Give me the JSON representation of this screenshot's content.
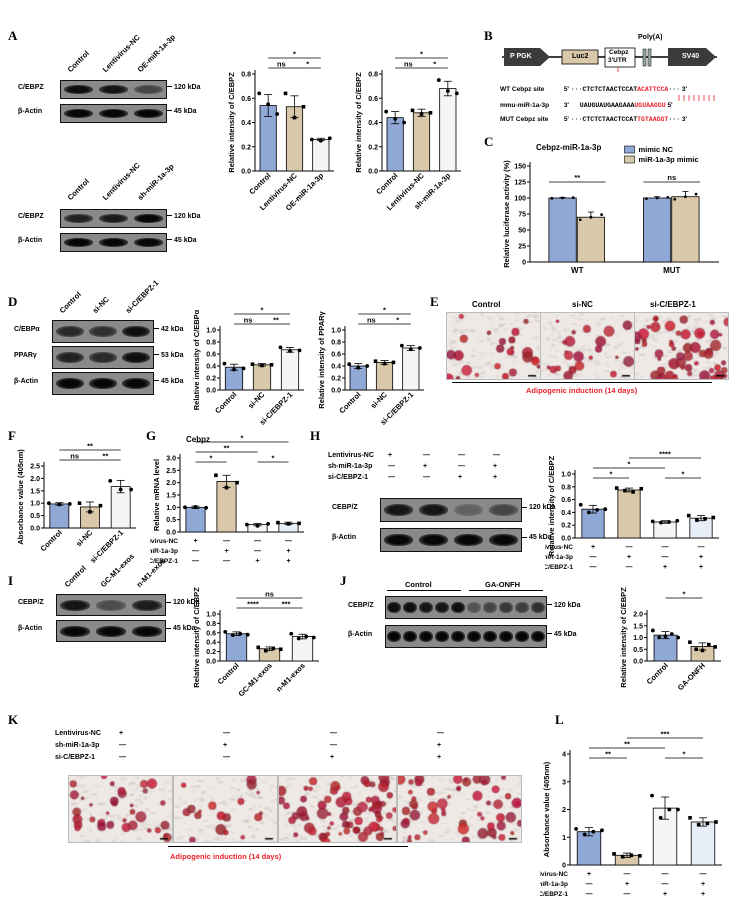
{
  "panels": {
    "A": {
      "letter": "A",
      "blot1": {
        "lanes": [
          "Control",
          "Lentivirus-NC",
          "OE-miR-1a-3p"
        ],
        "rows": [
          {
            "label": "C/EBPZ",
            "kda": "120 kDa",
            "intensity": [
              0.9,
              0.85,
              0.5
            ]
          },
          {
            "label": "β-Actin",
            "kda": "45 kDa",
            "intensity": [
              0.95,
              0.95,
              0.95
            ]
          }
        ]
      },
      "blot2": {
        "lanes": [
          "Control",
          "Lentivirus-NC",
          "sh-miR-1a-3p"
        ],
        "rows": [
          {
            "label": "C/EBPZ",
            "kda": "120 kDa",
            "intensity": [
              0.75,
              0.8,
              0.95
            ]
          },
          {
            "label": "β-Actin",
            "kda": "45 kDa",
            "intensity": [
              0.95,
              0.95,
              0.95
            ]
          }
        ]
      }
    },
    "B": {
      "letter": "B",
      "construct": {
        "ppgk": "P PGK",
        "luc2": "Luc2",
        "utr1": "Cebpz",
        "utr2": "3'UTR",
        "polya": "Poly(A)",
        "sv40": "SV40"
      },
      "seqs": [
        {
          "name": "WT Cebpz site",
          "p5": "5'",
          "seq": "···CTCTCTAACTCCAT",
          "red": "ACATTCCA",
          "tail": "···",
          "p3": "3'"
        },
        {
          "name": "mmu-miR-1a-3p",
          "p5": "3'",
          "seq": "UAUGUAUGAAGAAA",
          "red": "UGUAAGGU",
          "tail": "",
          "p3": "5'"
        },
        {
          "name": "MUT Cebpz site",
          "p5": "5'",
          "seq": "···CTCTCTAACTCCAT",
          "red": "TGTAAGGT",
          "tail": "···",
          "p3": "3'"
        }
      ]
    },
    "C": {
      "letter": "C"
    },
    "D": {
      "letter": "D",
      "blot": {
        "lanes": [
          "Control",
          "si-NC",
          "si-C/EBPZ-1"
        ],
        "rows": [
          {
            "label": "C/EBPα",
            "kda": "42 kDa",
            "intensity": [
              0.7,
              0.65,
              0.9
            ]
          },
          {
            "label": "PPARγ",
            "kda": "53 kDa",
            "intensity": [
              0.75,
              0.7,
              0.9
            ]
          },
          {
            "label": "β-Actin",
            "kda": "45 kDa",
            "intensity": [
              0.95,
              0.95,
              0.95
            ]
          }
        ]
      }
    },
    "E": {
      "letter": "E",
      "titles": [
        "Control",
        "si-NC",
        "si-C/EBPZ-1"
      ],
      "caption": "Adipogenic induction (14 days)"
    },
    "F": {
      "letter": "F"
    },
    "G": {
      "letter": "G"
    },
    "H": {
      "letter": "H",
      "treatments": [
        {
          "name": "Lentivirus-NC",
          "signs": [
            "+",
            "—",
            "—",
            "—"
          ]
        },
        {
          "name": "sh-miR-1a-3p",
          "signs": [
            "—",
            "+",
            "—",
            "+"
          ]
        },
        {
          "name": "si-C/EBPZ-1",
          "signs": [
            "—",
            "—",
            "+",
            "+"
          ]
        }
      ],
      "rows": [
        {
          "label": "CEBP/Z",
          "kda": "120 kDa",
          "intensity": [
            0.85,
            0.85,
            0.3,
            0.5
          ]
        },
        {
          "label": "β-Actin",
          "kda": "45 kDa",
          "intensity": [
            0.95,
            0.95,
            0.95,
            0.95
          ]
        }
      ]
    },
    "I": {
      "letter": "I",
      "lanes": [
        "Control",
        "GC-M1-exos",
        "n-M1-exos"
      ],
      "rows": [
        {
          "label": "CEBP/Z",
          "kda": "120 kDa",
          "intensity": [
            0.85,
            0.45,
            0.8
          ]
        },
        {
          "label": "β-Actin",
          "kda": "45 kDa",
          "intensity": [
            0.95,
            0.95,
            0.95
          ]
        }
      ]
    },
    "J": {
      "letter": "J",
      "groups": [
        "Control",
        "GA-ONFH"
      ],
      "rows": [
        {
          "label": "CEBP/Z",
          "kda": "120 kDa",
          "intensity": [
            0.9,
            0.9,
            0.85,
            0.85,
            0.9,
            0.4,
            0.5,
            0.6,
            0.55,
            0.65
          ]
        },
        {
          "label": "β-Actin",
          "kda": "45 kDa",
          "intensity": [
            0.95,
            0.95,
            0.95,
            0.95,
            0.95,
            0.95,
            0.95,
            0.95,
            0.95,
            0.95
          ]
        }
      ]
    },
    "K": {
      "letter": "K",
      "treatments": [
        {
          "name": "Lentivirus-NC",
          "signs": [
            "+",
            "—",
            "—",
            "—"
          ]
        },
        {
          "name": "sh-miR-1a-3p",
          "signs": [
            "—",
            "+",
            "—",
            "+"
          ]
        },
        {
          "name": "si-C/EBPZ-1",
          "signs": [
            "—",
            "—",
            "+",
            "+"
          ]
        }
      ],
      "caption": "Adipogenic induction (14 days)"
    },
    "L": {
      "letter": "L"
    }
  },
  "chart_data": [
    {
      "id": "A1",
      "type": "bar",
      "ylabel": "Relative intensity of C/EBPZ",
      "categories": [
        "Control",
        "Lentivirus-NC",
        "OE-miR-1a-3p"
      ],
      "values": [
        0.54,
        0.53,
        0.26
      ],
      "errors": [
        0.09,
        0.09,
        0.01
      ],
      "points": [
        [
          0.64,
          0.55,
          0.47
        ],
        [
          0.64,
          0.44,
          0.53
        ],
        [
          0.26,
          0.25,
          0.27
        ]
      ],
      "yticks": [
        "0.0",
        "0.2",
        "0.4",
        "0.6",
        "0.8"
      ],
      "ylim": [
        0,
        0.8
      ],
      "colors": [
        "#8fa8d6",
        "#d9c8a9",
        "#f5f5f5"
      ],
      "sig": [
        {
          "a": 0,
          "b": 2,
          "label": "*",
          "level": 0
        },
        {
          "a": 0,
          "b": 1,
          "label": "ns",
          "level": 1
        },
        {
          "a": 1,
          "b": 2,
          "label": "*",
          "level": 1
        }
      ]
    },
    {
      "id": "A2",
      "type": "bar",
      "ylabel": "Relative intensity of C/EBPZ",
      "categories": [
        "Control",
        "Lentivirus-NC",
        "sh-miR-1a-3p"
      ],
      "values": [
        0.44,
        0.48,
        0.68
      ],
      "errors": [
        0.05,
        0.03,
        0.06
      ],
      "points": [
        [
          0.49,
          0.43,
          0.4
        ],
        [
          0.5,
          0.47,
          0.48
        ],
        [
          0.75,
          0.66,
          0.64
        ]
      ],
      "yticks": [
        "0.0",
        "0.2",
        "0.4",
        "0.6",
        "0.8"
      ],
      "ylim": [
        0,
        0.8
      ],
      "colors": [
        "#8fa8d6",
        "#d9c8a9",
        "#f5f5f5"
      ],
      "sig": [
        {
          "a": 0,
          "b": 2,
          "label": "*",
          "level": 0
        },
        {
          "a": 0,
          "b": 1,
          "label": "ns",
          "level": 1
        },
        {
          "a": 1,
          "b": 2,
          "label": "*",
          "level": 1
        }
      ]
    },
    {
      "id": "C",
      "type": "bar",
      "title": "Cebpz-miR-1a-3p",
      "ylabel": "Relative luciferase activity (%)",
      "categories": [
        "WT",
        "MUT"
      ],
      "series": [
        {
          "name": "mimic NC",
          "values": [
            100,
            100
          ],
          "errors": [
            1,
            2
          ],
          "color": "#8fa8d6"
        },
        {
          "name": "miR-1a-3p mimic",
          "values": [
            70,
            102
          ],
          "errors": [
            8,
            8
          ],
          "color": "#d9c8a9"
        }
      ],
      "yticks": [
        "0",
        "25",
        "50",
        "75",
        "100",
        "125",
        "150"
      ],
      "ylim": [
        0,
        150
      ],
      "sig": [
        {
          "cat": 0,
          "label": "**"
        },
        {
          "cat": 1,
          "label": "ns"
        }
      ]
    },
    {
      "id": "D1",
      "type": "bar",
      "ylabel": "Relative intensity of C/EBPα",
      "categories": [
        "Control",
        "si-NC",
        "si-C/EBPZ-1"
      ],
      "values": [
        0.38,
        0.42,
        0.67
      ],
      "errors": [
        0.05,
        0.02,
        0.04
      ],
      "points": [
        [
          0.44,
          0.34,
          0.36
        ],
        [
          0.43,
          0.41,
          0.42
        ],
        [
          0.71,
          0.65,
          0.66
        ]
      ],
      "yticks": [
        "0.0",
        "0.2",
        "0.4",
        "0.6",
        "0.8",
        "1.0"
      ],
      "ylim": [
        0,
        1.0
      ],
      "colors": [
        "#8fa8d6",
        "#d9c8a9",
        "#f5f5f5"
      ],
      "sig": [
        {
          "a": 0,
          "b": 2,
          "label": "*",
          "level": 0
        },
        {
          "a": 0,
          "b": 1,
          "label": "ns",
          "level": 1
        },
        {
          "a": 1,
          "b": 2,
          "label": "**",
          "level": 1
        }
      ]
    },
    {
      "id": "D2",
      "type": "bar",
      "ylabel": "Relative intensity of PPARγ",
      "categories": [
        "Control",
        "si-NC",
        "si-C/EBPZ-1"
      ],
      "values": [
        0.4,
        0.46,
        0.7
      ],
      "errors": [
        0.04,
        0.03,
        0.04
      ],
      "points": [
        [
          0.43,
          0.37,
          0.4
        ],
        [
          0.48,
          0.44,
          0.46
        ],
        [
          0.74,
          0.68,
          0.7
        ]
      ],
      "yticks": [
        "0.0",
        "0.2",
        "0.4",
        "0.6",
        "0.8",
        "1.0"
      ],
      "ylim": [
        0,
        1.0
      ],
      "colors": [
        "#8fa8d6",
        "#d9c8a9",
        "#f5f5f5"
      ],
      "sig": [
        {
          "a": 0,
          "b": 2,
          "label": "*",
          "level": 0
        },
        {
          "a": 0,
          "b": 1,
          "label": "ns",
          "level": 1
        },
        {
          "a": 1,
          "b": 2,
          "label": "*",
          "level": 1
        }
      ]
    },
    {
      "id": "F",
      "type": "bar",
      "ylabel": "Absorbance value (405nm)",
      "categories": [
        "Control",
        "si-NC",
        "si-C/EBPZ-1"
      ],
      "values": [
        0.97,
        0.85,
        1.67
      ],
      "errors": [
        0.05,
        0.2,
        0.25
      ],
      "points": [
        [
          1.0,
          0.95,
          0.97
        ],
        [
          1.0,
          0.65,
          0.9
        ],
        [
          1.9,
          1.55,
          1.55
        ]
      ],
      "yticks": [
        "0.0",
        "0.5",
        "1.0",
        "1.5",
        "2.0",
        "2.5"
      ],
      "ylim": [
        0,
        2.5
      ],
      "colors": [
        "#8fa8d6",
        "#d9c8a9",
        "#f5f5f5"
      ],
      "sig": [
        {
          "a": 0,
          "b": 2,
          "label": "**",
          "level": 0
        },
        {
          "a": 0,
          "b": 1,
          "label": "ns",
          "level": 1
        },
        {
          "a": 1,
          "b": 2,
          "label": "**",
          "level": 1
        }
      ]
    },
    {
      "id": "G",
      "type": "bar",
      "title": "Cebpz",
      "ylabel": "Relative mRNA level",
      "categories": [
        "1",
        "2",
        "3",
        "4"
      ],
      "values": [
        1.0,
        2.05,
        0.3,
        0.35
      ],
      "errors": [
        0.05,
        0.25,
        0.05,
        0.05
      ],
      "points": [
        [
          1.0,
          1.02,
          0.98
        ],
        [
          2.3,
          1.8,
          2.0
        ],
        [
          0.3,
          0.25,
          0.33
        ],
        [
          0.38,
          0.33,
          0.35
        ]
      ],
      "yticks": [
        "0.0",
        "0.5",
        "1.0",
        "1.5",
        "2.0",
        "2.5",
        "3.0"
      ],
      "ylim": [
        0,
        3.0
      ],
      "colors": [
        "#8fa8d6",
        "#d9c8a9",
        "#f5f5f5",
        "#e8eef8"
      ],
      "treatments": [
        {
          "name": "Lentivirus-NC",
          "signs": [
            "+",
            "—",
            "—",
            "—"
          ]
        },
        {
          "name": "sh-miR-1a-3p",
          "signs": [
            "—",
            "+",
            "—",
            "+"
          ]
        },
        {
          "name": "si-C/EBPZ-1",
          "signs": [
            "—",
            "—",
            "+",
            "+"
          ]
        }
      ],
      "sig": [
        {
          "a": 0,
          "b": 3,
          "label": "*",
          "level": 0
        },
        {
          "a": 0,
          "b": 2,
          "label": "**",
          "level": 1
        },
        {
          "a": 0,
          "b": 1,
          "label": "*",
          "level": 2
        },
        {
          "a": 2,
          "b": 3,
          "label": "*",
          "level": 2
        }
      ]
    },
    {
      "id": "H",
      "type": "bar",
      "ylabel": "Relative intensity of C/EBPZ",
      "categories": [
        "1",
        "2",
        "3",
        "4"
      ],
      "values": [
        0.45,
        0.75,
        0.25,
        0.31
      ],
      "errors": [
        0.06,
        0.03,
        0.02,
        0.04
      ],
      "points": [
        [
          0.52,
          0.4,
          0.44,
          0.45
        ],
        [
          0.78,
          0.74,
          0.72,
          0.77
        ],
        [
          0.26,
          0.24,
          0.25,
          0.27
        ],
        [
          0.35,
          0.28,
          0.3,
          0.32
        ]
      ],
      "yticks": [
        "0.0",
        "0.2",
        "0.4",
        "0.6",
        "0.8",
        "1.0"
      ],
      "ylim": [
        0,
        1.0
      ],
      "colors": [
        "#8fa8d6",
        "#d9c8a9",
        "#f5f5f5",
        "#e8eef8"
      ],
      "treatments": [
        {
          "name": "Lentivirus-NC",
          "signs": [
            "+",
            "—",
            "—",
            "—"
          ]
        },
        {
          "name": "sh-miR-1a-3p",
          "signs": [
            "—",
            "+",
            "—",
            "+"
          ]
        },
        {
          "name": "si-C/EBPZ-1",
          "signs": [
            "—",
            "—",
            "+",
            "+"
          ]
        }
      ],
      "sig": [
        {
          "a": 1,
          "b": 3,
          "label": "****",
          "level": 0
        },
        {
          "a": 0,
          "b": 2,
          "label": "*",
          "level": 1
        },
        {
          "a": 0,
          "b": 1,
          "label": "*",
          "level": 2
        },
        {
          "a": 2,
          "b": 3,
          "label": "*",
          "level": 2
        }
      ]
    },
    {
      "id": "I",
      "type": "bar",
      "ylabel": "Relative intensity of C/EBPZ",
      "categories": [
        "Control",
        "GC-M1-exos",
        "n-M1-exos"
      ],
      "values": [
        0.58,
        0.26,
        0.52
      ],
      "errors": [
        0.04,
        0.04,
        0.05
      ],
      "points": [
        [
          0.62,
          0.55,
          0.58,
          0.56
        ],
        [
          0.29,
          0.22,
          0.27,
          0.25
        ],
        [
          0.58,
          0.48,
          0.52,
          0.5
        ]
      ],
      "yticks": [
        "0.0",
        "0.2",
        "0.4",
        "0.6",
        "0.8",
        "1.0"
      ],
      "ylim": [
        0,
        1.0
      ],
      "colors": [
        "#8fa8d6",
        "#d9c8a9",
        "#f5f5f5"
      ],
      "sig": [
        {
          "a": 0,
          "b": 2,
          "label": "ns",
          "level": 0
        },
        {
          "a": 0,
          "b": 1,
          "label": "****",
          "level": 1
        },
        {
          "a": 1,
          "b": 2,
          "label": "***",
          "level": 1
        }
      ]
    },
    {
      "id": "J",
      "type": "bar",
      "ylabel": "Relative intensity of C/EBPZ",
      "categories": [
        "Control",
        "GA-ONFH"
      ],
      "values": [
        1.1,
        0.62
      ],
      "errors": [
        0.15,
        0.15
      ],
      "points": [
        [
          1.3,
          1.0,
          1.05,
          1.15,
          1.0
        ],
        [
          0.8,
          0.5,
          0.45,
          0.7,
          0.6
        ]
      ],
      "yticks": [
        "0.0",
        "0.5",
        "1.0",
        "1.5",
        "2.0"
      ],
      "ylim": [
        0,
        2.0
      ],
      "colors": [
        "#8fa8d6",
        "#d9c8a9"
      ],
      "sig": [
        {
          "a": 0,
          "b": 1,
          "label": "*",
          "level": 0
        }
      ]
    },
    {
      "id": "L",
      "type": "bar",
      "ylabel": "Absorbance value (405nm)",
      "categories": [
        "1",
        "2",
        "3",
        "4"
      ],
      "values": [
        1.2,
        0.35,
        2.05,
        1.55
      ],
      "errors": [
        0.15,
        0.08,
        0.4,
        0.15
      ],
      "points": [
        [
          1.3,
          1.1,
          1.2,
          1.25
        ],
        [
          0.4,
          0.3,
          0.35,
          0.33
        ],
        [
          2.5,
          1.7,
          2.0,
          2.0
        ],
        [
          1.7,
          1.45,
          1.5,
          1.55
        ]
      ],
      "yticks": [
        "0",
        "1",
        "2",
        "3",
        "4"
      ],
      "ylim": [
        0,
        4
      ],
      "colors": [
        "#8fa8d6",
        "#d9c8a9",
        "#f5f5f5",
        "#e8eef8"
      ],
      "treatments": [
        {
          "name": "Lentivirus-NC",
          "signs": [
            "+",
            "—",
            "—",
            "—"
          ]
        },
        {
          "name": "sh-miR-1a-3p",
          "signs": [
            "—",
            "+",
            "—",
            "+"
          ]
        },
        {
          "name": "si-C/EBPZ-1",
          "signs": [
            "—",
            "—",
            "+",
            "+"
          ]
        }
      ],
      "sig": [
        {
          "a": 1,
          "b": 3,
          "label": "***",
          "level": 0
        },
        {
          "a": 0,
          "b": 2,
          "label": "**",
          "level": 1
        },
        {
          "a": 0,
          "b": 1,
          "label": "**",
          "level": 2
        },
        {
          "a": 2,
          "b": 3,
          "label": "*",
          "level": 2
        }
      ]
    }
  ]
}
